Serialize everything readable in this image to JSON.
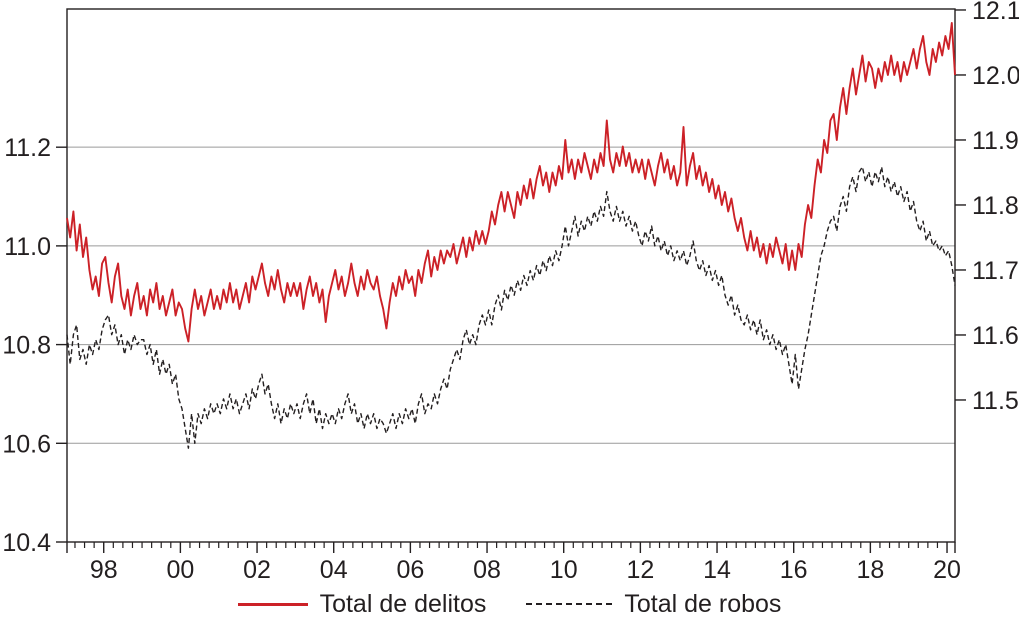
{
  "chart_data": {
    "type": "line",
    "title": "",
    "xlabel": "",
    "ylabel_left": "",
    "ylabel_right": "",
    "grid": "horizontal-left-ticks-only",
    "legend_position": "bottom-center",
    "x_axis": {
      "unit": "year",
      "range": [
        1997.042,
        2020.208
      ],
      "start_year": 1997,
      "frequency": "monthly",
      "major_tick_years": [
        1998,
        2000,
        2002,
        2004,
        2006,
        2008,
        2010,
        2012,
        2014,
        2016,
        2018,
        2020
      ],
      "tick_labels": [
        "98",
        "00",
        "02",
        "04",
        "06",
        "08",
        "10",
        "12",
        "14",
        "16",
        "18",
        "20"
      ],
      "minor_tick_interval_years": 0.25
    },
    "left_axis": {
      "range": [
        10.4,
        11.48
      ],
      "ticks": [
        10.4,
        10.6,
        10.8,
        11.0,
        11.2
      ],
      "tick_labels": [
        "10.4",
        "10.6",
        "10.8",
        "11.0",
        "11.2"
      ],
      "series": "Total de robos"
    },
    "right_axis": {
      "range": [
        11.2815,
        12.1015
      ],
      "ticks": [
        11.5,
        11.6,
        11.7,
        11.8,
        11.9,
        12.0,
        12.1
      ],
      "tick_labels": [
        "11.5",
        "11.6",
        "11.7",
        "11.8",
        "11.9",
        "12.0",
        "12.1"
      ],
      "series": "Total de delitos"
    },
    "series": [
      {
        "name": "Total de robos",
        "axis": "left",
        "color": "#231f20",
        "style": "dashed",
        "values": [
          10.82,
          10.76,
          10.82,
          10.84,
          10.77,
          10.79,
          10.76,
          10.8,
          10.78,
          10.81,
          10.79,
          10.83,
          10.85,
          10.86,
          10.82,
          10.84,
          10.8,
          10.82,
          10.78,
          10.81,
          10.79,
          10.82,
          10.8,
          10.81,
          10.81,
          10.78,
          10.8,
          10.76,
          10.79,
          10.74,
          10.77,
          10.74,
          10.76,
          10.72,
          10.74,
          10.69,
          10.67,
          10.63,
          10.59,
          10.66,
          10.6,
          10.66,
          10.64,
          10.67,
          10.65,
          10.68,
          10.66,
          10.68,
          10.66,
          10.69,
          10.67,
          10.7,
          10.67,
          10.69,
          10.66,
          10.68,
          10.7,
          10.67,
          10.71,
          10.69,
          10.72,
          10.74,
          10.7,
          10.72,
          10.68,
          10.65,
          10.68,
          10.64,
          10.67,
          10.65,
          10.68,
          10.66,
          10.68,
          10.65,
          10.68,
          10.7,
          10.66,
          10.69,
          10.64,
          10.67,
          10.63,
          10.66,
          10.64,
          10.66,
          10.64,
          10.67,
          10.65,
          10.68,
          10.7,
          10.66,
          10.68,
          10.64,
          10.66,
          10.63,
          10.66,
          10.64,
          10.66,
          10.63,
          10.65,
          10.64,
          10.62,
          10.64,
          10.66,
          10.63,
          10.66,
          10.64,
          10.67,
          10.65,
          10.67,
          10.64,
          10.68,
          10.7,
          10.66,
          10.68,
          10.67,
          10.7,
          10.68,
          10.71,
          10.73,
          10.71,
          10.75,
          10.77,
          10.79,
          10.77,
          10.81,
          10.83,
          10.8,
          10.82,
          10.8,
          10.84,
          10.86,
          10.84,
          10.87,
          10.84,
          10.88,
          10.9,
          10.87,
          10.91,
          10.89,
          10.92,
          10.9,
          10.93,
          10.91,
          10.94,
          10.92,
          10.95,
          10.93,
          10.96,
          10.94,
          10.97,
          10.95,
          10.98,
          10.96,
          10.99,
          10.97,
          11.0,
          11.04,
          11.0,
          11.03,
          11.06,
          11.02,
          11.05,
          11.03,
          11.06,
          11.04,
          11.07,
          11.05,
          11.08,
          11.06,
          11.11,
          11.07,
          11.05,
          11.08,
          11.05,
          11.07,
          11.04,
          11.06,
          11.03,
          11.05,
          11.02,
          11.0,
          11.03,
          11.01,
          11.04,
          11.0,
          11.02,
          10.99,
          11.01,
          10.98,
          11.0,
          10.97,
          10.99,
          10.97,
          10.99,
          10.96,
          10.98,
          11.01,
          10.97,
          10.95,
          10.97,
          10.94,
          10.96,
          10.93,
          10.95,
          10.92,
          10.94,
          10.9,
          10.88,
          10.9,
          10.86,
          10.88,
          10.85,
          10.84,
          10.86,
          10.83,
          10.85,
          10.82,
          10.85,
          10.81,
          10.83,
          10.8,
          10.82,
          10.79,
          10.81,
          10.78,
          10.8,
          10.76,
          10.72,
          10.78,
          10.71,
          10.75,
          10.79,
          10.82,
          10.86,
          10.9,
          10.94,
          10.98,
          11.0,
          11.03,
          11.05,
          11.06,
          11.03,
          11.08,
          11.1,
          11.07,
          11.12,
          11.14,
          11.11,
          11.15,
          11.16,
          11.13,
          11.15,
          11.12,
          11.15,
          11.13,
          11.16,
          11.12,
          11.14,
          11.11,
          11.13,
          11.1,
          11.12,
          11.09,
          11.11,
          11.07,
          11.09,
          11.05,
          11.03,
          11.05,
          11.01,
          11.03,
          11.0,
          11.01,
          10.99,
          11.0,
          10.98,
          10.99,
          10.96,
          10.92
        ]
      },
      {
        "name": "Total de delitos",
        "axis": "right",
        "color": "#cc2127",
        "style": "solid",
        "values": [
          11.78,
          11.75,
          11.79,
          11.73,
          11.77,
          11.72,
          11.75,
          11.7,
          11.67,
          11.69,
          11.66,
          11.71,
          11.72,
          11.68,
          11.65,
          11.69,
          11.71,
          11.66,
          11.64,
          11.67,
          11.63,
          11.66,
          11.68,
          11.64,
          11.66,
          11.63,
          11.67,
          11.65,
          11.68,
          11.64,
          11.66,
          11.63,
          11.65,
          11.67,
          11.63,
          11.65,
          11.64,
          11.61,
          11.59,
          11.64,
          11.67,
          11.64,
          11.66,
          11.63,
          11.65,
          11.67,
          11.64,
          11.66,
          11.64,
          11.67,
          11.65,
          11.68,
          11.65,
          11.67,
          11.64,
          11.66,
          11.68,
          11.65,
          11.69,
          11.67,
          11.69,
          11.71,
          11.68,
          11.66,
          11.69,
          11.67,
          11.7,
          11.67,
          11.65,
          11.68,
          11.66,
          11.68,
          11.66,
          11.68,
          11.64,
          11.67,
          11.69,
          11.66,
          11.68,
          11.65,
          11.67,
          11.62,
          11.66,
          11.68,
          11.7,
          11.67,
          11.69,
          11.66,
          11.68,
          11.71,
          11.68,
          11.66,
          11.69,
          11.67,
          11.7,
          11.68,
          11.67,
          11.69,
          11.66,
          11.64,
          11.61,
          11.65,
          11.68,
          11.66,
          11.69,
          11.67,
          11.7,
          11.68,
          11.69,
          11.66,
          11.7,
          11.68,
          11.71,
          11.73,
          11.69,
          11.72,
          11.7,
          11.73,
          11.71,
          11.73,
          11.72,
          11.74,
          11.71,
          11.73,
          11.75,
          11.72,
          11.75,
          11.73,
          11.76,
          11.74,
          11.76,
          11.74,
          11.76,
          11.79,
          11.77,
          11.8,
          11.82,
          11.79,
          11.82,
          11.8,
          11.78,
          11.82,
          11.8,
          11.83,
          11.81,
          11.84,
          11.81,
          11.84,
          11.86,
          11.83,
          11.85,
          11.82,
          11.85,
          11.83,
          11.86,
          11.84,
          11.9,
          11.85,
          11.87,
          11.84,
          11.87,
          11.85,
          11.88,
          11.86,
          11.84,
          11.87,
          11.85,
          11.88,
          11.86,
          11.93,
          11.87,
          11.85,
          11.88,
          11.86,
          11.89,
          11.86,
          11.88,
          11.85,
          11.87,
          11.85,
          11.87,
          11.84,
          11.87,
          11.85,
          11.83,
          11.86,
          11.88,
          11.85,
          11.87,
          11.84,
          11.86,
          11.83,
          11.85,
          11.92,
          11.83,
          11.86,
          11.88,
          11.84,
          11.86,
          11.83,
          11.85,
          11.82,
          11.84,
          11.81,
          11.83,
          11.8,
          11.82,
          11.79,
          11.81,
          11.78,
          11.76,
          11.78,
          11.75,
          11.73,
          11.76,
          11.73,
          11.75,
          11.72,
          11.74,
          11.71,
          11.74,
          11.72,
          11.75,
          11.73,
          11.71,
          11.74,
          11.7,
          11.73,
          11.7,
          11.74,
          11.72,
          11.77,
          11.8,
          11.78,
          11.83,
          11.87,
          11.85,
          11.9,
          11.88,
          11.93,
          11.94,
          11.9,
          11.95,
          11.98,
          11.94,
          11.98,
          12.01,
          11.97,
          12.0,
          12.03,
          11.99,
          12.02,
          12.01,
          11.98,
          12.01,
          11.99,
          12.02,
          12.0,
          12.03,
          12.0,
          12.02,
          11.99,
          12.02,
          12.0,
          12.02,
          12.04,
          12.01,
          12.04,
          12.06,
          12.02,
          12.0,
          12.04,
          12.02,
          12.05,
          12.03,
          12.06,
          12.04,
          12.08,
          12.0
        ]
      }
    ]
  },
  "legend": {
    "items": [
      {
        "label": "Total de delitos",
        "style": "solid",
        "color": "#cc2127"
      },
      {
        "label": "Total de robos",
        "style": "dashed",
        "color": "#231f20"
      }
    ]
  },
  "style": {
    "frame_color": "#231f20",
    "grid_color": "#9a9a9a",
    "text_color": "#231f20",
    "background": "#ffffff"
  }
}
